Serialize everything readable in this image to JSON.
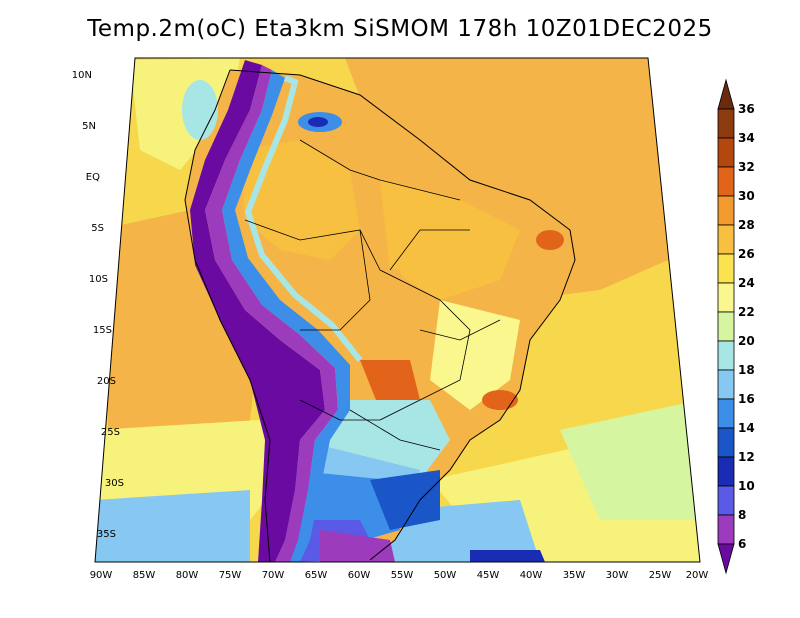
{
  "title": "Temp.2m(oC) Eta3km SiSMOM 178h 10Z01DEC2025",
  "map": {
    "lat_ticks": [
      "10N",
      "5N",
      "EQ",
      "5S",
      "10S",
      "15S",
      "20S",
      "25S",
      "30S",
      "35S"
    ],
    "lon_ticks": [
      "90W",
      "85W",
      "80W",
      "75W",
      "70W",
      "65W",
      "60W",
      "55W",
      "50W",
      "45W",
      "40W",
      "35W",
      "30W",
      "25W",
      "20W"
    ]
  },
  "colorbar": {
    "labels": [
      "36",
      "34",
      "32",
      "30",
      "28",
      "26",
      "24",
      "22",
      "20",
      "18",
      "16",
      "14",
      "12",
      "10",
      "8",
      "6"
    ],
    "colors": [
      "#6b2a0e",
      "#8c3a10",
      "#b4470e",
      "#e2641a",
      "#f29a2e",
      "#f8c040",
      "#fbe250",
      "#f9f78e",
      "#d6f5a0",
      "#a8e6e6",
      "#86c8f2",
      "#3c8ee8",
      "#1a56c8",
      "#1a2cb4",
      "#5a5ae6",
      "#9c3cbc",
      "#6a0aa0"
    ],
    "units": "oC"
  },
  "legend_colors": {
    "ocean_warm": "#f4b448",
    "ocean_mild": "#f7d84c",
    "ocean_cool": "#f6f27c",
    "andes_cold": "#6a0aa0"
  }
}
